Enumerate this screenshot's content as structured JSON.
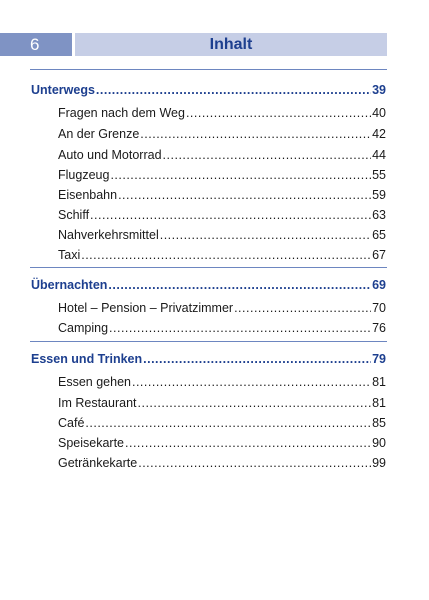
{
  "header": {
    "page_number": "6",
    "title": "Inhalt"
  },
  "toc": {
    "unterwegs": {
      "label": "Unterwegs",
      "page": "39",
      "entries": [
        {
          "label": "Fragen nach dem Weg",
          "page": "40"
        },
        {
          "label": "An der Grenze",
          "page": "42"
        },
        {
          "label": "Auto und Motorrad",
          "page": "44"
        },
        {
          "label": "Flugzeug",
          "page": "55"
        },
        {
          "label": "Eisenbahn",
          "page": "59"
        },
        {
          "label": "Schiff",
          "page": "63"
        },
        {
          "label": "Nahverkehrsmittel",
          "page": "65"
        },
        {
          "label": "Taxi",
          "page": "67"
        }
      ]
    },
    "uebernachten": {
      "label": "Übernachten",
      "page": "69",
      "entries": [
        {
          "label": "Hotel – Pension – Privatzimmer",
          "page": "70"
        },
        {
          "label": "Camping",
          "page": "76"
        }
      ]
    },
    "essen": {
      "label": "Essen und Trinken",
      "page": "79",
      "entries": [
        {
          "label": "Essen gehen",
          "page": "81"
        },
        {
          "label": "Im Restaurant",
          "page": "81"
        },
        {
          "label": "Café",
          "page": "85"
        },
        {
          "label": "Speisekarte",
          "page": "90"
        },
        {
          "label": "Getränkekarte",
          "page": "99"
        }
      ]
    }
  },
  "colors": {
    "accent_dark": "#1d3f8f",
    "header_number_bg": "#7f93c4",
    "header_title_bg": "#c6cee6",
    "rule": "#6d86c0"
  }
}
